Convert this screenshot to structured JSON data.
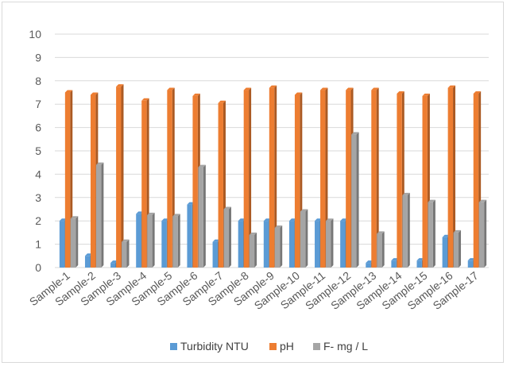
{
  "chart_data": {
    "type": "bar",
    "categories": [
      "Sample-1",
      "Sample-2",
      "Sample-3",
      "Sample-4",
      "Sample-5",
      "Sample-6",
      "Sample-7",
      "Sample-8",
      "Sample-9",
      "Sample-10",
      "Sample-11",
      "Sample-12",
      "Sample-13",
      "Sample-14",
      "Sample-15",
      "Sample-16",
      "Sample-17"
    ],
    "series": [
      {
        "name": "Turbidity NTU",
        "color": "#5b9bd5",
        "values": [
          2.0,
          0.5,
          0.2,
          2.3,
          2.0,
          2.7,
          1.1,
          2.0,
          2.0,
          2.0,
          2.0,
          2.0,
          0.2,
          0.3,
          0.3,
          1.3,
          0.3
        ]
      },
      {
        "name": "pH",
        "color": "#ed7d31",
        "values": [
          7.5,
          7.4,
          7.75,
          7.15,
          7.6,
          7.35,
          7.05,
          7.6,
          7.7,
          7.4,
          7.6,
          7.6,
          7.6,
          7.45,
          7.35,
          7.7,
          7.45
        ]
      },
      {
        "name": "F- mg / L",
        "color": "#a5a5a5",
        "values": [
          2.1,
          4.4,
          1.1,
          2.25,
          2.2,
          4.3,
          2.5,
          1.4,
          1.7,
          2.4,
          2.0,
          5.7,
          1.45,
          3.1,
          2.8,
          1.5,
          2.8
        ]
      }
    ],
    "yticks": [
      "0",
      "1",
      "2",
      "3",
      "4",
      "5",
      "6",
      "7",
      "8",
      "9",
      "10"
    ],
    "ylim": [
      0,
      10
    ],
    "grid": true,
    "legend": "bottom"
  }
}
